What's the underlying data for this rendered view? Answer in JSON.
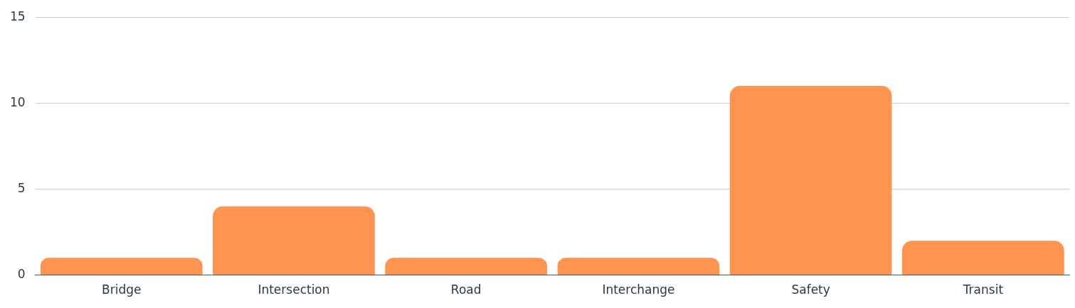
{
  "chart_data": {
    "type": "bar",
    "categories": [
      "Bridge",
      "Intersection",
      "Road",
      "Interchange",
      "Safety",
      "Transit"
    ],
    "values": [
      1,
      4,
      1,
      1,
      11,
      2
    ],
    "color": "#ff9350",
    "ylim": [
      0,
      15
    ],
    "yticks": [
      0,
      5,
      10,
      15
    ],
    "grid": "y",
    "legend": false
  }
}
